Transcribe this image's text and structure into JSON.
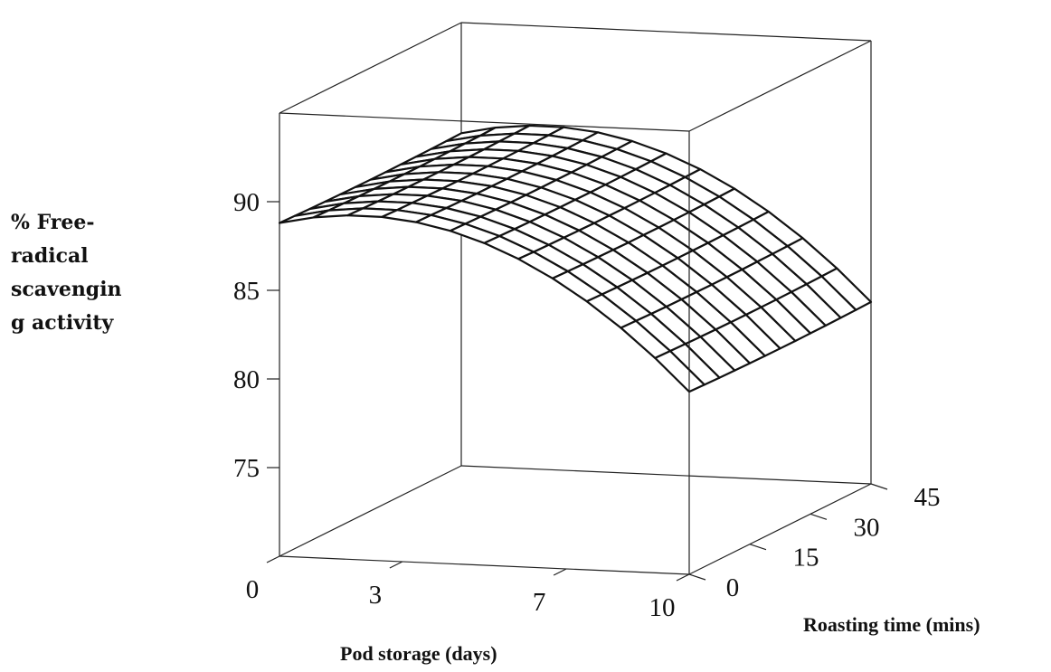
{
  "chart_data": {
    "type": "surface",
    "z_label_lines": [
      "% Free-",
      "radical",
      "scavengin",
      "g activity"
    ],
    "x_label": "Pod storage (days)",
    "y_label": "Roasting time (mins)",
    "x_ticks": [
      "0",
      "3",
      "7",
      "10"
    ],
    "y_ticks": [
      "0",
      "15",
      "30",
      "45"
    ],
    "z_ticks": [
      "75",
      "80",
      "85",
      "90"
    ],
    "x_range": [
      0,
      10
    ],
    "y_range": [
      0,
      45
    ],
    "z_range": [
      70,
      95
    ],
    "grid": false,
    "surface_grid": {
      "x": [
        0,
        0.833,
        1.667,
        2.5,
        3.333,
        4.167,
        5,
        5.833,
        6.667,
        7.5,
        8.333,
        9.167,
        10
      ],
      "y": [
        0,
        3.75,
        7.5,
        11.25,
        15,
        18.75,
        22.5,
        26.25,
        30,
        33.75,
        37.5,
        41.25,
        45
      ],
      "model": {
        "form": "z = b0 + b1*x + b2*x^2 + b3*y + b4*y^2",
        "b0": 88.8,
        "b1": 0.6,
        "b2": -0.145,
        "b3": -0.0089,
        "b4": 0.000178
      },
      "corner_values": [
        {
          "x": 0,
          "y": 0,
          "z": 88.8
        },
        {
          "x": 0,
          "y": 45,
          "z": 88.8
        },
        {
          "x": 10,
          "y": 0,
          "z": 80.3
        },
        {
          "x": 10,
          "y": 45,
          "z": 80.3
        },
        {
          "x": 5,
          "y": 22.5,
          "z": 88.0
        }
      ]
    }
  }
}
